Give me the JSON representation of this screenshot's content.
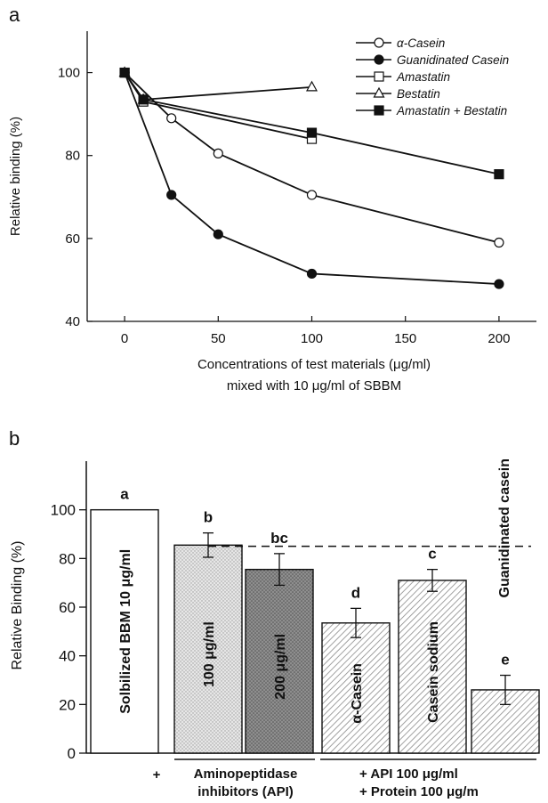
{
  "chart_data": [
    {
      "panel_label": "a",
      "type": "line",
      "xlabel_line1": "Concentrations of test materials (μg/ml)",
      "xlabel_line2": "mixed with 10 μg/ml of SBBM",
      "ylabel": "Relative binding (%)",
      "xlim": [
        -20,
        220
      ],
      "ylim": [
        40,
        110
      ],
      "x_ticks": [
        0,
        50,
        100,
        150,
        200
      ],
      "y_ticks": [
        40,
        60,
        80,
        100
      ],
      "legend_position": "top-right",
      "series": [
        {
          "name": "α-Casein",
          "marker": "circle-open",
          "x": [
            0,
            25,
            50,
            100,
            200
          ],
          "y": [
            100,
            89,
            80.5,
            70.5,
            59
          ]
        },
        {
          "name": "Guanidinated Casein",
          "marker": "circle-filled",
          "x": [
            0,
            25,
            50,
            100,
            200
          ],
          "y": [
            100,
            70.5,
            61,
            51.5,
            49
          ]
        },
        {
          "name": "Amastatin",
          "marker": "square-open",
          "x": [
            0,
            10,
            100
          ],
          "y": [
            100,
            93,
            84
          ]
        },
        {
          "name": "Bestatin",
          "marker": "triangle-open",
          "x": [
            0,
            10,
            100
          ],
          "y": [
            100,
            93.5,
            96.5
          ]
        },
        {
          "name": "Amastatin + Bestatin",
          "marker": "square-filled",
          "x": [
            0,
            10,
            100,
            200
          ],
          "y": [
            100,
            93.5,
            85.5,
            75.5
          ]
        }
      ]
    },
    {
      "panel_label": "b",
      "type": "bar",
      "ylabel": "Relative Binding (%)",
      "ylim": [
        0,
        120
      ],
      "y_ticks": [
        0,
        20,
        40,
        60,
        80,
        100
      ],
      "reference_line": {
        "value": 85,
        "style": "dashed"
      },
      "bars": [
        {
          "label": "Solbilized BBM 10 μg/ml",
          "value": 100,
          "error": 0,
          "letter": "a",
          "fill": "white"
        },
        {
          "label": "100 μg/ml",
          "value": 85.5,
          "error": 5,
          "letter": "b",
          "fill": "light-dotted"
        },
        {
          "label": "200 μg/ml",
          "value": 75.5,
          "error": 6.5,
          "letter": "bc",
          "fill": "dark-dotted"
        },
        {
          "label": "α-Casein",
          "value": 53.5,
          "error": 6,
          "letter": "d",
          "fill": "hatched"
        },
        {
          "label": "Casein sodium",
          "value": 71,
          "error": 4.5,
          "letter": "c",
          "fill": "hatched"
        },
        {
          "label": "Guanidinated casein",
          "value": 26,
          "error": 6,
          "letter": "e",
          "fill": "hatched"
        }
      ],
      "group_labels": {
        "plus1": "+",
        "api_line1": "Aminopeptidase",
        "api_line2": "inhibitors  (API)",
        "mix_line1": "+  API  100  μg/ml",
        "mix_line2": "+  Protein  100  μg/m"
      }
    }
  ]
}
